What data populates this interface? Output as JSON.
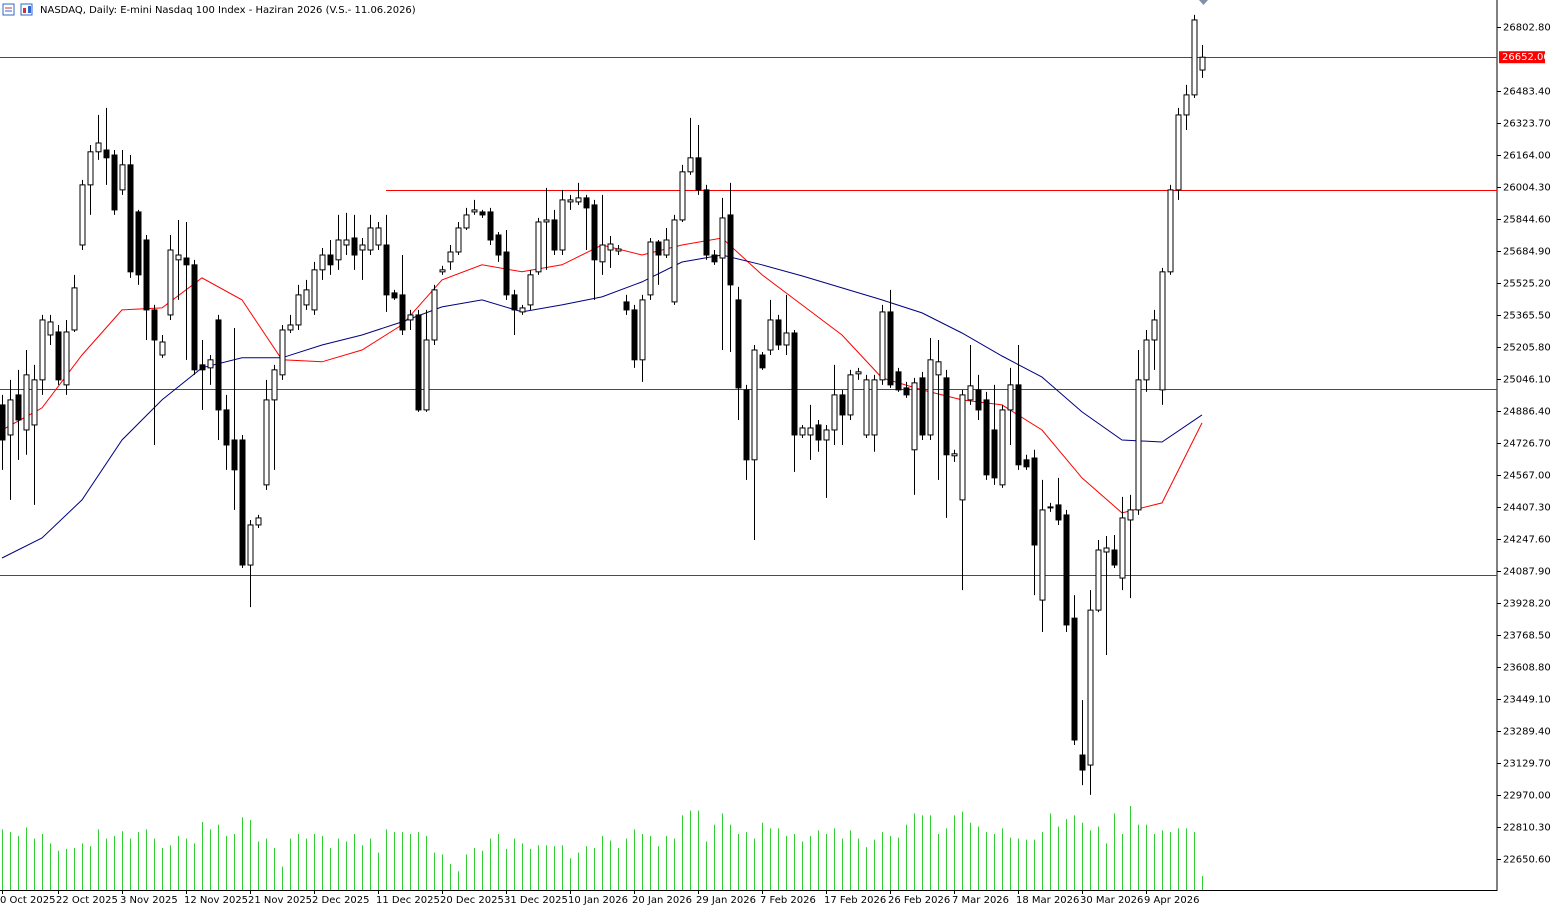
{
  "chart_data": {
    "type": "candlestick",
    "title": "NASDAQ, Daily: E-mini Nasdaq 100 Index - Haziran 2026 (V.S.- 11.06.2026)",
    "categories": [
      "0 Oct 2025",
      null,
      null,
      null,
      null,
      null,
      null,
      "22 Oct 2025",
      null,
      null,
      null,
      null,
      null,
      null,
      null,
      "3 Nov 2025",
      null,
      null,
      null,
      null,
      null,
      null,
      null,
      "12 Nov 2025",
      null,
      null,
      null,
      null,
      null,
      null,
      null,
      "21 Nov 2025",
      null,
      null,
      null,
      null,
      null,
      null,
      null,
      "2 Dec 2025",
      null,
      null,
      null,
      null,
      null,
      null,
      null,
      "11 Dec 2025",
      null,
      null,
      null,
      null,
      null,
      null,
      null,
      "20 Dec 2025",
      null,
      null,
      null,
      null,
      null,
      null,
      null,
      "31 Dec 2025",
      null,
      null,
      null,
      null,
      null,
      null,
      null,
      "10 Jan 2026",
      null,
      null,
      null,
      null,
      null,
      null,
      null,
      "20 Jan 2026",
      null,
      null,
      null,
      null,
      null,
      null,
      null,
      "29 Jan 2026",
      null,
      null,
      null,
      null,
      null,
      null,
      null,
      "7 Feb 2026",
      null,
      null,
      null,
      null,
      null,
      null,
      null,
      "17 Feb 2026",
      null,
      null,
      null,
      null,
      null,
      null,
      null,
      "26 Feb 2026",
      null,
      null,
      null,
      null,
      null,
      null,
      null,
      "7 Mar 2026",
      null,
      null,
      null,
      null,
      null,
      null,
      null,
      "18 Mar 2026",
      null,
      null,
      null,
      null,
      null,
      null,
      null,
      "30 Mar 2026",
      null,
      null,
      null,
      null,
      null,
      null,
      null,
      "9 Apr 2026",
      null,
      null,
      null,
      null,
      null,
      null,
      null
    ],
    "ohlc": [
      [
        24917,
        24967,
        24593,
        24742
      ],
      [
        24767,
        25042,
        24443,
        24942
      ],
      [
        24967,
        25092,
        24643,
        24842
      ],
      [
        24792,
        25191,
        24668,
        25067
      ],
      [
        24817,
        25117,
        24418,
        25042
      ],
      [
        25042,
        25366,
        24967,
        25341
      ],
      [
        25266,
        25366,
        25216,
        25331
      ],
      [
        25281,
        25316,
        25017,
        25042
      ],
      [
        25017,
        25341,
        24967,
        25281
      ],
      [
        25291,
        25566,
        25281,
        25501
      ],
      [
        25715,
        26040,
        25690,
        26015
      ],
      [
        26015,
        26214,
        25865,
        26180
      ],
      [
        26180,
        26364,
        26140,
        26224
      ],
      [
        26189,
        26399,
        26015,
        26150
      ],
      [
        26164,
        26189,
        25865,
        25890
      ],
      [
        25990,
        26189,
        25965,
        26115
      ],
      [
        26115,
        26164,
        25551,
        25581
      ],
      [
        25880,
        25890,
        25516,
        25566
      ],
      [
        25740,
        25765,
        25241,
        25391
      ],
      [
        25391,
        25416,
        24717,
        25241
      ],
      [
        25166,
        25266,
        25152,
        25231
      ],
      [
        25366,
        25765,
        25341,
        25690
      ],
      [
        25641,
        25840,
        25441,
        25665
      ],
      [
        25650,
        25830,
        25142,
        25616
      ],
      [
        25616,
        25641,
        25067,
        25092
      ],
      [
        25117,
        25241,
        24892,
        25092
      ],
      [
        25102,
        25166,
        25017,
        25142
      ],
      [
        25341,
        25366,
        24742,
        24892
      ],
      [
        24892,
        24967,
        24593,
        24717
      ],
      [
        24742,
        25301,
        24393,
        24593
      ],
      [
        24742,
        24767,
        24103,
        24118
      ],
      [
        24118,
        24343,
        23908,
        24318
      ],
      [
        24318,
        24368,
        24303,
        24353
      ],
      [
        24518,
        25042,
        24493,
        24942
      ],
      [
        24942,
        25117,
        24593,
        25092
      ],
      [
        25067,
        25316,
        25042,
        25291
      ],
      [
        25291,
        25366,
        25276,
        25316
      ],
      [
        25316,
        25516,
        25291,
        25466
      ],
      [
        25416,
        25541,
        25391,
        25491
      ],
      [
        25391,
        25631,
        25366,
        25591
      ],
      [
        25591,
        25700,
        25541,
        25665
      ],
      [
        25665,
        25740,
        25566,
        25616
      ],
      [
        25641,
        25865,
        25591,
        25740
      ],
      [
        25715,
        25875,
        25665,
        25740
      ],
      [
        25750,
        25865,
        25591,
        25665
      ],
      [
        25690,
        25750,
        25541,
        25715
      ],
      [
        25690,
        25865,
        25665,
        25800
      ],
      [
        25715,
        25830,
        25690,
        25800
      ],
      [
        25715,
        25865,
        25381,
        25466
      ],
      [
        25476,
        25491,
        25441,
        25451
      ],
      [
        25466,
        25665,
        25266,
        25291
      ],
      [
        25341,
        25391,
        25291,
        25366
      ],
      [
        25366,
        25391,
        24882,
        24892
      ],
      [
        24892,
        25391,
        24882,
        25241
      ],
      [
        25241,
        25516,
        25216,
        25491
      ],
      [
        25581,
        25611,
        25566,
        25591
      ],
      [
        25631,
        25715,
        25591,
        25680
      ],
      [
        25680,
        25830,
        25665,
        25800
      ],
      [
        25800,
        25900,
        25790,
        25865
      ],
      [
        25880,
        25940,
        25865,
        25890
      ],
      [
        25880,
        25890,
        25850,
        25865
      ],
      [
        25880,
        25900,
        25715,
        25740
      ],
      [
        25765,
        25780,
        25631,
        25665
      ],
      [
        25680,
        25790,
        25441,
        25466
      ],
      [
        25466,
        25491,
        25266,
        25391
      ],
      [
        25381,
        25416,
        25366,
        25401
      ],
      [
        25416,
        25591,
        25391,
        25566
      ],
      [
        25581,
        25850,
        25566,
        25830
      ],
      [
        25830,
        26000,
        25591,
        25840
      ],
      [
        25840,
        25890,
        25665,
        25690
      ],
      [
        25690,
        25990,
        25665,
        25940
      ],
      [
        25930,
        25965,
        25890,
        25940
      ],
      [
        25930,
        26025,
        25915,
        25950
      ],
      [
        25950,
        25965,
        25690,
        25900
      ],
      [
        25915,
        25940,
        25441,
        25641
      ],
      [
        25631,
        25965,
        25566,
        25715
      ],
      [
        25690,
        25760,
        25601,
        25720
      ],
      [
        25685,
        25715,
        25665,
        25695
      ],
      [
        25431,
        25466,
        25366,
        25391
      ],
      [
        25391,
        25416,
        25102,
        25142
      ],
      [
        25142,
        25466,
        25032,
        25441
      ],
      [
        25466,
        25750,
        25441,
        25730
      ],
      [
        25730,
        25740,
        25516,
        25665
      ],
      [
        25665,
        25800,
        25650,
        25740
      ],
      [
        25431,
        25865,
        25416,
        25840
      ],
      [
        25840,
        26115,
        25830,
        26080
      ],
      [
        26080,
        26349,
        26065,
        26150
      ],
      [
        26150,
        26314,
        25965,
        25990
      ],
      [
        25990,
        26015,
        25641,
        25665
      ],
      [
        25665,
        25690,
        25616,
        25631
      ],
      [
        25650,
        25950,
        25191,
        25850
      ],
      [
        25865,
        26025,
        25181,
        25516
      ],
      [
        25441,
        25506,
        24842,
        25002
      ],
      [
        24992,
        25017,
        24543,
        24643
      ],
      [
        24643,
        25216,
        24243,
        25191
      ],
      [
        25166,
        25181,
        25092,
        25102
      ],
      [
        25191,
        25441,
        25166,
        25341
      ],
      [
        25341,
        25366,
        25191,
        25216
      ],
      [
        25216,
        25466,
        25166,
        25276
      ],
      [
        25276,
        25291,
        24583,
        24767
      ],
      [
        24767,
        24817,
        24752,
        24802
      ],
      [
        24767,
        24917,
        24643,
        24802
      ],
      [
        24817,
        24842,
        24683,
        24742
      ],
      [
        24742,
        24817,
        24453,
        24792
      ],
      [
        24792,
        25117,
        24717,
        24967
      ],
      [
        24967,
        24992,
        24717,
        24867
      ],
      [
        24867,
        25092,
        24842,
        25067
      ],
      [
        25072,
        25102,
        25042,
        25082
      ],
      [
        24767,
        25067,
        24752,
        25042
      ],
      [
        24767,
        25067,
        24683,
        25042
      ],
      [
        25042,
        25416,
        25017,
        25381
      ],
      [
        25381,
        25491,
        25002,
        25017
      ],
      [
        25082,
        25102,
        24982,
        24992
      ],
      [
        25002,
        25032,
        24952,
        24967
      ],
      [
        24693,
        25052,
        24468,
        25027
      ],
      [
        25052,
        25082,
        24742,
        24767
      ],
      [
        24767,
        25251,
        24742,
        25142
      ],
      [
        25067,
        25241,
        24543,
        25132
      ],
      [
        25052,
        25092,
        24353,
        24668
      ],
      [
        24663,
        24693,
        24633,
        24673
      ],
      [
        24443,
        24992,
        23993,
        24967
      ],
      [
        24942,
        25216,
        24917,
        25012
      ],
      [
        24992,
        25067,
        24842,
        24892
      ],
      [
        24942,
        24982,
        24543,
        24568
      ],
      [
        24792,
        25017,
        24518,
        24553
      ],
      [
        24518,
        24917,
        24503,
        24892
      ],
      [
        24892,
        25102,
        24717,
        25017
      ],
      [
        25017,
        25216,
        24593,
        24618
      ],
      [
        24643,
        24668,
        24593,
        24608
      ],
      [
        24652,
        24693,
        23968,
        24218
      ],
      [
        23943,
        24543,
        23784,
        24393
      ],
      [
        24403,
        24428,
        24383,
        24408
      ],
      [
        24418,
        24553,
        24318,
        24343
      ],
      [
        24368,
        24393,
        23784,
        23819
      ],
      [
        23853,
        23968,
        23220,
        23245
      ],
      [
        23170,
        23444,
        23020,
        23095
      ],
      [
        23120,
        23993,
        22971,
        23893
      ],
      [
        23893,
        24243,
        23883,
        24193
      ],
      [
        24183,
        24263,
        23669,
        24203
      ],
      [
        24193,
        24268,
        24103,
        24118
      ],
      [
        24053,
        24458,
        23993,
        24353
      ],
      [
        24343,
        24468,
        23953,
        24393
      ],
      [
        24393,
        25191,
        24368,
        25042
      ],
      [
        25042,
        25291,
        24982,
        25241
      ],
      [
        25241,
        25391,
        25092,
        25341
      ],
      [
        24992,
        25601,
        24917,
        25581
      ],
      [
        25581,
        26015,
        25566,
        25990
      ],
      [
        25990,
        26399,
        25940,
        26364
      ],
      [
        26364,
        26514,
        26289,
        26464
      ],
      [
        26464,
        26863,
        26449,
        26838
      ],
      [
        26588,
        26713,
        26549,
        26652
      ]
    ],
    "volumes": [
      65,
      62,
      58,
      67,
      55,
      60,
      50,
      42,
      44,
      45,
      50,
      47,
      65,
      55,
      58,
      63,
      55,
      62,
      65,
      55,
      45,
      48,
      58,
      55,
      50,
      73,
      65,
      70,
      58,
      60,
      78,
      75,
      52,
      55,
      45,
      25,
      55,
      60,
      55,
      60,
      58,
      45,
      55,
      52,
      60,
      48,
      55,
      40,
      65,
      62,
      62,
      60,
      62,
      58,
      40,
      38,
      28,
      20,
      38,
      45,
      42,
      55,
      60,
      44,
      55,
      50,
      44,
      48,
      48,
      47,
      48,
      34,
      40,
      47,
      45,
      58,
      53,
      45,
      55,
      65,
      60,
      58,
      47,
      58,
      55,
      80,
      85,
      85,
      52,
      70,
      82,
      70,
      60,
      62,
      55,
      72,
      66,
      66,
      58,
      60,
      52,
      58,
      64,
      60,
      66,
      55,
      64,
      55,
      46,
      54,
      62,
      58,
      56,
      70,
      82,
      80,
      80,
      60,
      66,
      80,
      84,
      72,
      68,
      62,
      60,
      66,
      56,
      55,
      54,
      54,
      62,
      82,
      68,
      76,
      80,
      72,
      64,
      68,
      50,
      82,
      60,
      90,
      70,
      70,
      60,
      64,
      62,
      66,
      66,
      62,
      15
    ],
    "ma_index": [
      0,
      5,
      10,
      15,
      20,
      25,
      30,
      35,
      40,
      45,
      50,
      55,
      60,
      65,
      70,
      75,
      80,
      85,
      90,
      95,
      100,
      105,
      110,
      115,
      120,
      125,
      130,
      135,
      140,
      145,
      150
    ],
    "moving_averages": [
      {
        "color": "#ff0000",
        "values": [
          24792,
          24902,
          25166,
          25391,
          25401,
          25551,
          25441,
          25142,
          25132,
          25191,
          25316,
          25541,
          25616,
          25581,
          25616,
          25715,
          25665,
          25715,
          25750,
          25566,
          25416,
          25266,
          25052,
          24992,
          24942,
          24917,
          24792,
          24553,
          24378,
          24428,
          24827
        ]
      },
      {
        "color": "#000080",
        "values": [
          24153,
          24253,
          24443,
          24742,
          24942,
          25102,
          25152,
          25152,
          25216,
          25266,
          25331,
          25406,
          25441,
          25381,
          25416,
          25456,
          25531,
          25630,
          25665,
          25616,
          25561,
          25501,
          25441,
          25376,
          25276,
          25161,
          25056,
          24882,
          24742,
          24732,
          24867
        ]
      }
    ],
    "levels": [
      {
        "value": 26652
      },
      {
        "value": 25990,
        "from": 48
      },
      {
        "value": 24997
      },
      {
        "value": 24068
      }
    ],
    "level_color": "#ff0000",
    "current_price": {
      "value": 26652,
      "label": "26652.00"
    },
    "up_color": "#ffffff",
    "down_color": "#000000",
    "volume_color": "#32cd32",
    "ylim": [
      22496.4,
      26937.5
    ],
    "yticks": [
      {
        "value": 26802.8,
        "label": "26802.80"
      },
      {
        "value": 26483.4,
        "label": "26483.40"
      },
      {
        "value": 26323.7,
        "label": "26323.70"
      },
      {
        "value": 26164.0,
        "label": "26164.00"
      },
      {
        "value": 26004.3,
        "label": "26004.30"
      },
      {
        "value": 25844.6,
        "label": "25844.60"
      },
      {
        "value": 25684.9,
        "label": "25684.90"
      },
      {
        "value": 25525.2,
        "label": "25525.20"
      },
      {
        "value": 25365.5,
        "label": "25365.50"
      },
      {
        "value": 25205.8,
        "label": "25205.80"
      },
      {
        "value": 25046.1,
        "label": "25046.10"
      },
      {
        "value": 24886.4,
        "label": "24886.40"
      },
      {
        "value": 24726.7,
        "label": "24726.70"
      },
      {
        "value": 24567.0,
        "label": "24567.00"
      },
      {
        "value": 24407.3,
        "label": "24407.30"
      },
      {
        "value": 24247.6,
        "label": "24247.60"
      },
      {
        "value": 24087.9,
        "label": "24087.90"
      },
      {
        "value": 23928.2,
        "label": "23928.20"
      },
      {
        "value": 23768.5,
        "label": "23768.50"
      },
      {
        "value": 23608.8,
        "label": "23608.80"
      },
      {
        "value": 23449.1,
        "label": "23449.10"
      },
      {
        "value": 23289.4,
        "label": "23289.40"
      },
      {
        "value": 23129.7,
        "label": "23129.70"
      },
      {
        "value": 22970.0,
        "label": "22970.00"
      },
      {
        "value": 22810.3,
        "label": "22810.30"
      },
      {
        "value": 22650.6,
        "label": "22650.60"
      }
    ]
  }
}
